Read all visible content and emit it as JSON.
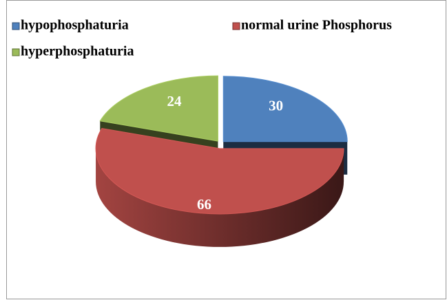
{
  "chart_data": {
    "type": "pie",
    "categories": [
      "hypophosphaturia",
      "normal urine Phosphorus",
      "hyperphosphaturia"
    ],
    "values": [
      30,
      66,
      24
    ],
    "colors": [
      "#4f81bd",
      "#c0504d",
      "#9bbb59"
    ],
    "legend": "top"
  }
}
